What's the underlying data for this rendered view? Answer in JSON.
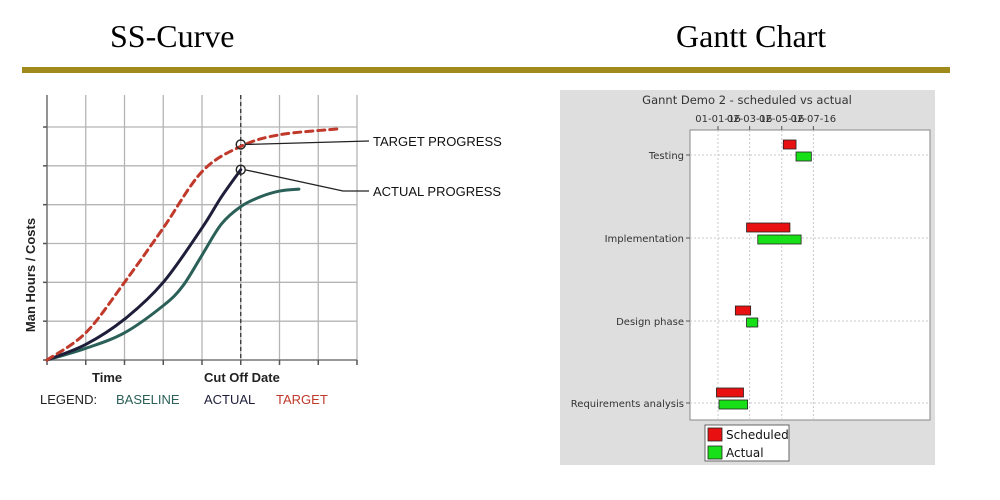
{
  "page": {
    "left_heading": "SS-Curve",
    "right_heading": "Gantt Chart",
    "rule_color": "#a08a1c"
  },
  "chart_data": [
    {
      "type": "line",
      "title": "",
      "xlabel_left": "Time",
      "xlabel_right": "Cut Off Date",
      "ylabel": "Man Hours / Costs",
      "grid": true,
      "cutoff_x": 5,
      "xlim": [
        0,
        8
      ],
      "ylim": [
        0,
        6
      ],
      "callouts": [
        {
          "text": "TARGET PROGRESS",
          "series": "target",
          "x": 5,
          "y": 5.55
        },
        {
          "text": "ACTUAL PROGRESS",
          "series": "actual",
          "x": 5,
          "y": 4.9
        }
      ],
      "legend": {
        "prefix": "LEGEND:",
        "entries": [
          {
            "key": "baseline",
            "label": "BASELINE",
            "color": "#2a6058"
          },
          {
            "key": "actual",
            "label": "ACTUAL",
            "color": "#1e1e3a"
          },
          {
            "key": "target",
            "label": "TARGET",
            "color": "#c0392b"
          }
        ]
      },
      "series": [
        {
          "key": "baseline",
          "color": "#2a6058",
          "dashed": false,
          "x": [
            0,
            1,
            2,
            3,
            3.5,
            4,
            4.5,
            5,
            5.5,
            6,
            6.5
          ],
          "y": [
            0,
            0.3,
            0.7,
            1.4,
            1.9,
            2.7,
            3.5,
            3.95,
            4.2,
            4.35,
            4.4
          ]
        },
        {
          "key": "actual",
          "color": "#1e1e3a",
          "dashed": false,
          "x": [
            0,
            1,
            2,
            3,
            4,
            4.5,
            5
          ],
          "y": [
            0,
            0.4,
            1.05,
            2.0,
            3.4,
            4.2,
            4.9
          ]
        },
        {
          "key": "target",
          "color": "#c0392b",
          "dashed": true,
          "x": [
            0,
            1,
            2,
            3,
            4,
            5,
            6,
            7.5
          ],
          "y": [
            0,
            0.7,
            2.0,
            3.4,
            4.85,
            5.5,
            5.8,
            5.95
          ]
        }
      ]
    },
    {
      "type": "gantt",
      "title": "Gannt Demo 2 - scheduled vs actual",
      "x_ticks": [
        "01-01-16",
        "02-03-16",
        "02-05-16",
        "02-07-16"
      ],
      "tasks": [
        "Testing",
        "Implementation",
        "Design phase",
        "Requirements analysis"
      ],
      "series": [
        {
          "name": "Scheduled",
          "color": "#e81010",
          "bars": [
            {
              "task": "Testing",
              "start": "2016-05-08",
              "end": "2016-06-02"
            },
            {
              "task": "Implementation",
              "start": "2016-02-26",
              "end": "2016-05-21"
            },
            {
              "task": "Design phase",
              "start": "2016-02-04",
              "end": "2016-03-05"
            },
            {
              "task": "Requirements analysis",
              "start": "2015-12-29",
              "end": "2016-02-20"
            }
          ]
        },
        {
          "name": "Actual",
          "color": "#18e018",
          "bars": [
            {
              "task": "Testing",
              "start": "2016-06-02",
              "end": "2016-07-02"
            },
            {
              "task": "Implementation",
              "start": "2016-03-19",
              "end": "2016-06-12"
            },
            {
              "task": "Design phase",
              "start": "2016-02-26",
              "end": "2016-03-19"
            },
            {
              "task": "Requirements analysis",
              "start": "2016-01-03",
              "end": "2016-02-28"
            }
          ]
        }
      ]
    }
  ]
}
